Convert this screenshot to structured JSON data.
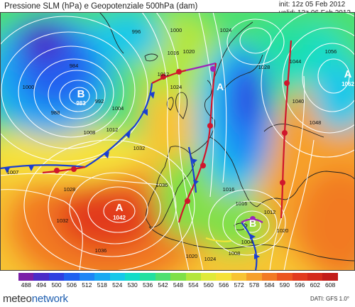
{
  "header": {
    "title": "Pressione SLM (hPa) e Geopotenziale 500hPa (dam)",
    "init": "init: 12z 05 Feb 2012",
    "valid": "valid: 12z 06 Feb 2012"
  },
  "legend": {
    "unit": "dam",
    "values": [
      488,
      494,
      500,
      506,
      512,
      518,
      524,
      530,
      536,
      542,
      548,
      554,
      560,
      566,
      572,
      578,
      584,
      590,
      596,
      602,
      608
    ],
    "colors": [
      "#7a1fa8",
      "#4a2cc8",
      "#2f3fe0",
      "#2060f0",
      "#1e86f5",
      "#19a9f2",
      "#15c8ea",
      "#12dcc8",
      "#22e0a0",
      "#4ee070",
      "#7fe048",
      "#b4e63c",
      "#e0ea3a",
      "#f6e23a",
      "#f8c433",
      "#f6a02b",
      "#f27a24",
      "#ec5520",
      "#e23a1e",
      "#d42a1c",
      "#c21c1a"
    ]
  },
  "centers": [
    {
      "kind": "B",
      "value": "983"
    },
    {
      "kind": "B",
      "value": ""
    },
    {
      "kind": "A",
      "value": "1062"
    },
    {
      "kind": "A",
      "value": "1042"
    },
    {
      "kind": "A",
      "value": ""
    }
  ],
  "isobar_labels": [
    "984",
    "988",
    "992",
    "996",
    "1000",
    "1000",
    "1004",
    "1008",
    "1012",
    "1012",
    "1016",
    "1016",
    "1020",
    "1020",
    "1024",
    "1024",
    "1028",
    "1028",
    "1032",
    "1032",
    "1036",
    "1036",
    "1040",
    "1044",
    "1048",
    "1056",
    "1007",
    "1004",
    "1008",
    "1012",
    "1016",
    "1020",
    "1024"
  ],
  "footer": {
    "logo_prefix": "meteo",
    "logo_suffix": "network",
    "model": "DATI:  GFS  1.0°"
  }
}
